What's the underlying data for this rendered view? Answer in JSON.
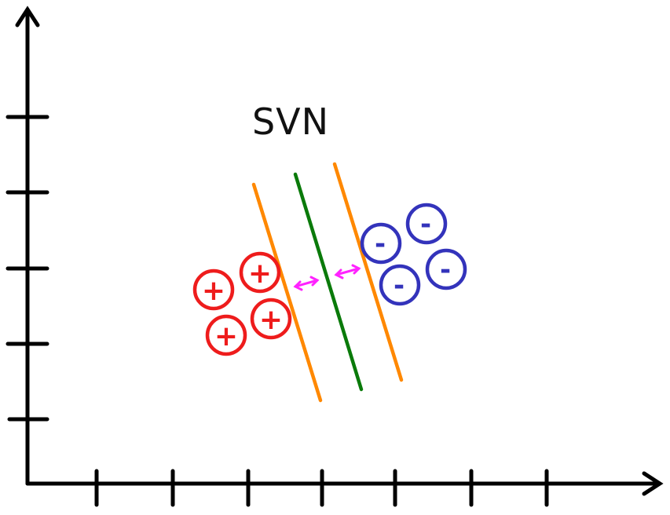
{
  "title": "SVN",
  "colors": {
    "axis": "#000000",
    "positive": "#ee1c1c",
    "negative": "#3333bb",
    "margin_line": "#ff8800",
    "hyperplane": "#0a7a0a",
    "margin_arrow": "#ff22ff"
  },
  "positive_class": {
    "symbol": "+",
    "samples": 4
  },
  "negative_class": {
    "symbol": "-",
    "samples": 4
  },
  "icons": {
    "axis_arrow": "arrowhead",
    "margin": "double-arrow"
  }
}
